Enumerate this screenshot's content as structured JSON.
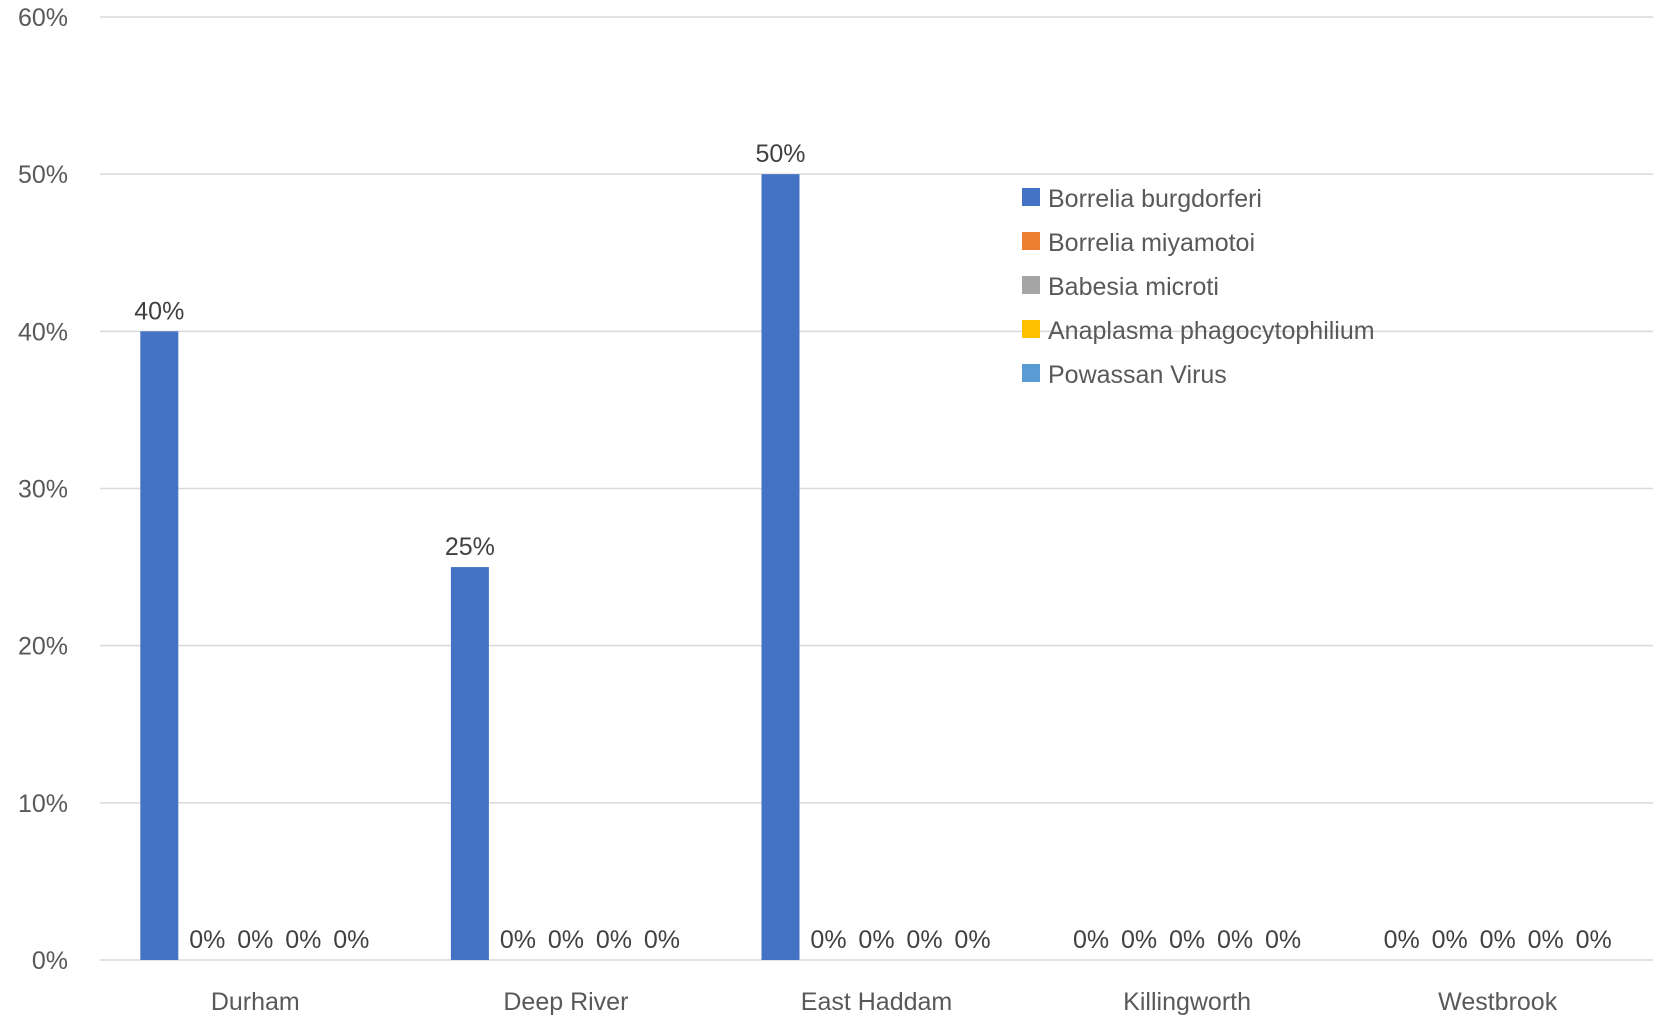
{
  "chart_data": {
    "type": "bar",
    "categories": [
      "Durham",
      "Deep River",
      "East Haddam",
      "Killingworth",
      "Westbrook"
    ],
    "series": [
      {
        "name": "Borrelia burgdorferi",
        "color": "#4472C4",
        "values": [
          40,
          25,
          50,
          0,
          0
        ]
      },
      {
        "name": "Borrelia miyamotoi",
        "color": "#ED7D31",
        "values": [
          0,
          0,
          0,
          0,
          0
        ]
      },
      {
        "name": "Babesia microti",
        "color": "#A5A5A5",
        "values": [
          0,
          0,
          0,
          0,
          0
        ]
      },
      {
        "name": "Anaplasma phagocytophilium",
        "color": "#FFC000",
        "values": [
          0,
          0,
          0,
          0,
          0
        ]
      },
      {
        "name": "Powassan Virus",
        "color": "#5B9BD5",
        "values": [
          0,
          0,
          0,
          0,
          0
        ]
      }
    ],
    "data_labels": [
      [
        "40%",
        "25%",
        "50%",
        "0%",
        "0%"
      ],
      [
        "0%",
        "0%",
        "0%",
        "0%",
        "0%"
      ],
      [
        "0%",
        "0%",
        "0%",
        "0%",
        "0%"
      ],
      [
        "0%",
        "0%",
        "0%",
        "0%",
        "0%"
      ],
      [
        "0%",
        "0%",
        "0%",
        "0%",
        "0%"
      ]
    ],
    "y_ticks": [
      "0%",
      "10%",
      "20%",
      "30%",
      "40%",
      "50%",
      "60%"
    ],
    "ylim": [
      0,
      60
    ],
    "y_unit": "%",
    "grid": true,
    "legend_position": "top-right"
  }
}
